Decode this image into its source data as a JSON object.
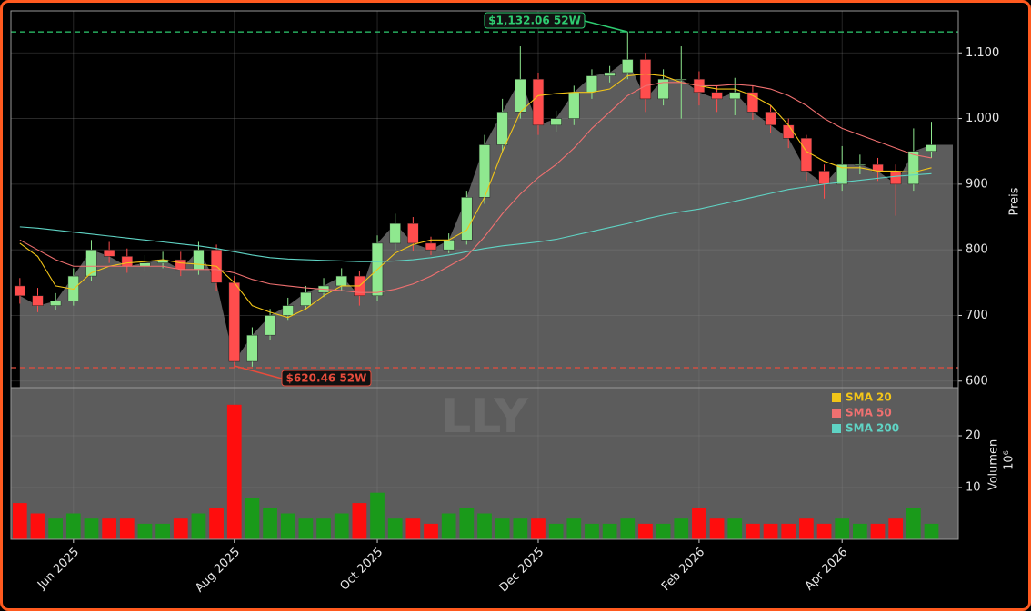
{
  "chart_data": {
    "type": "candlestick",
    "watermark": "LLY",
    "y_label": "Preis",
    "categories": [
      null,
      null,
      null,
      "Jun 2025",
      null,
      null,
      null,
      null,
      null,
      null,
      null,
      null,
      "Aug 2025",
      null,
      null,
      null,
      null,
      null,
      null,
      null,
      "Oct 2025",
      null,
      null,
      null,
      null,
      null,
      null,
      null,
      null,
      "Dec 2025",
      null,
      null,
      null,
      null,
      null,
      null,
      null,
      null,
      "Feb 2026",
      null,
      null,
      null,
      null,
      null,
      null,
      null,
      "Apr 2026",
      null,
      null,
      null,
      null,
      null
    ],
    "open": [
      745,
      730,
      715,
      722,
      760,
      800,
      790,
      775,
      780,
      785,
      770,
      800,
      750,
      630,
      670,
      700,
      715,
      735,
      745,
      760,
      730,
      810,
      840,
      810,
      800,
      815,
      880,
      960,
      1010,
      1060,
      990,
      1000,
      1040,
      1065,
      1070,
      1090,
      1030,
      1060,
      1060,
      1040,
      1030,
      1040,
      1010,
      990,
      970,
      920,
      900,
      930,
      930,
      920,
      900,
      950
    ],
    "high": [
      757,
      742,
      734,
      772,
      815,
      812,
      802,
      792,
      797,
      797,
      812,
      808,
      760,
      682,
      710,
      727,
      745,
      757,
      772,
      768,
      822,
      855,
      850,
      820,
      825,
      890,
      975,
      1030,
      1110,
      1070,
      1012,
      1050,
      1075,
      1080,
      1132.06,
      1100,
      1075,
      1110,
      1072,
      1050,
      1062,
      1050,
      1020,
      1000,
      975,
      930,
      958,
      945,
      940,
      930,
      985,
      995
    ],
    "low": [
      718,
      705,
      708,
      715,
      752,
      780,
      765,
      768,
      772,
      760,
      762,
      738,
      620.46,
      622,
      662,
      692,
      708,
      728,
      738,
      715,
      722,
      800,
      798,
      792,
      795,
      808,
      870,
      950,
      1000,
      975,
      980,
      990,
      1030,
      1055,
      1060,
      1010,
      1020,
      1000,
      1020,
      1010,
      1005,
      998,
      978,
      955,
      905,
      878,
      890,
      915,
      905,
      852,
      890,
      940
    ],
    "close": [
      730,
      715,
      722,
      760,
      800,
      790,
      775,
      780,
      785,
      770,
      800,
      750,
      630,
      670,
      700,
      715,
      735,
      745,
      760,
      730,
      810,
      840,
      810,
      800,
      815,
      880,
      960,
      1010,
      1060,
      990,
      1000,
      1040,
      1065,
      1070,
      1090,
      1030,
      1060,
      1060,
      1040,
      1030,
      1040,
      1010,
      990,
      970,
      920,
      900,
      930,
      930,
      920,
      900,
      950,
      960
    ],
    "up_color": "#8fe88f",
    "down_color": "#ff4d4d",
    "area_color": "#5c5c5c",
    "series": [
      {
        "name": "SMA 20",
        "color": "#f2c518",
        "values": [
          810,
          790,
          745,
          740,
          765,
          775,
          780,
          782,
          785,
          780,
          778,
          775,
          750,
          715,
          705,
          697,
          710,
          730,
          745,
          745,
          770,
          795,
          808,
          815,
          815,
          830,
          880,
          950,
          1010,
          1035,
          1038,
          1040,
          1040,
          1045,
          1065,
          1068,
          1065,
          1055,
          1050,
          1045,
          1045,
          1035,
          1020,
          990,
          950,
          935,
          925,
          925,
          920,
          920,
          918,
          925
        ]
      },
      {
        "name": "SMA 50",
        "color": "#f07070",
        "values": [
          815,
          800,
          785,
          775,
          775,
          775,
          775,
          775,
          775,
          770,
          770,
          770,
          765,
          755,
          748,
          745,
          742,
          740,
          738,
          735,
          735,
          740,
          748,
          760,
          775,
          790,
          820,
          855,
          885,
          910,
          930,
          955,
          985,
          1010,
          1035,
          1050,
          1055,
          1055,
          1050,
          1050,
          1052,
          1050,
          1045,
          1035,
          1020,
          1000,
          985,
          975,
          965,
          955,
          945,
          940
        ]
      },
      {
        "name": "SMA 200",
        "color": "#5fd3c4",
        "values": [
          835,
          833,
          830,
          827,
          824,
          821,
          818,
          815,
          812,
          809,
          806,
          802,
          797,
          792,
          788,
          786,
          785,
          784,
          783,
          782,
          782,
          783,
          785,
          788,
          792,
          797,
          802,
          806,
          809,
          812,
          816,
          822,
          828,
          834,
          840,
          847,
          853,
          858,
          862,
          868,
          874,
          880,
          886,
          892,
          896,
          900,
          903,
          906,
          909,
          912,
          914,
          916
        ]
      }
    ],
    "annotations": [
      {
        "label": "$1,132.06 52W",
        "value": 1132.06,
        "color": "#2ecc71"
      },
      {
        "label": "$620.46 52W",
        "value": 620.46,
        "color": "#e74c3c"
      }
    ],
    "ylim": [
      590,
      1164
    ],
    "yticks": [
      600,
      700,
      800,
      900,
      {
        "value": 1000,
        "label": "1.000"
      },
      {
        "value": 1100,
        "label": "1.100"
      }
    ],
    "grid": true,
    "volume": {
      "label": "Volumen",
      "unit": "10⁶",
      "values": [
        7,
        5,
        4,
        5,
        4,
        4,
        4,
        3,
        3,
        4,
        5,
        6,
        26,
        8,
        6,
        5,
        4,
        4,
        5,
        7,
        9,
        4,
        4,
        3,
        5,
        6,
        5,
        4,
        4,
        4,
        3,
        4,
        3,
        3,
        4,
        3,
        3,
        4,
        6,
        4,
        4,
        3,
        3,
        3,
        4,
        3,
        4,
        3,
        3,
        4,
        6,
        3
      ],
      "up_color": "#1a9a1a",
      "down_color": "#ff0d0d",
      "ylim": [
        0,
        29.3
      ],
      "yticks": [
        10,
        20
      ]
    }
  }
}
